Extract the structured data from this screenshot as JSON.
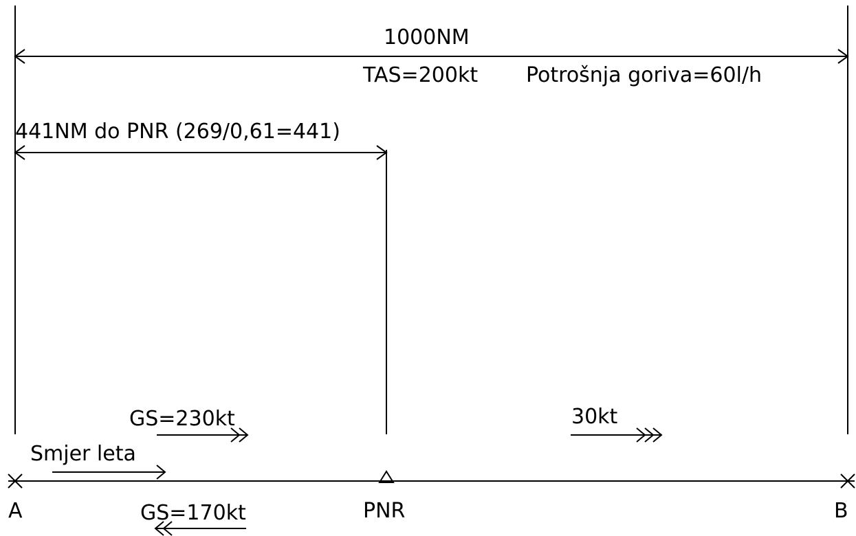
{
  "distance_total": "1000NM",
  "tas": "TAS=200kt",
  "fuel_consumption": "Potrošnja goriva=60l/h",
  "pnr_distance": "441NM do PNR (269/0,61=441)",
  "gs_out": "GS=230kt",
  "wind": "30kt",
  "flight_direction": "Smjer leta",
  "gs_back": "GS=170kt",
  "point_a": "A",
  "point_pnr": "PNR",
  "point_b": "B"
}
